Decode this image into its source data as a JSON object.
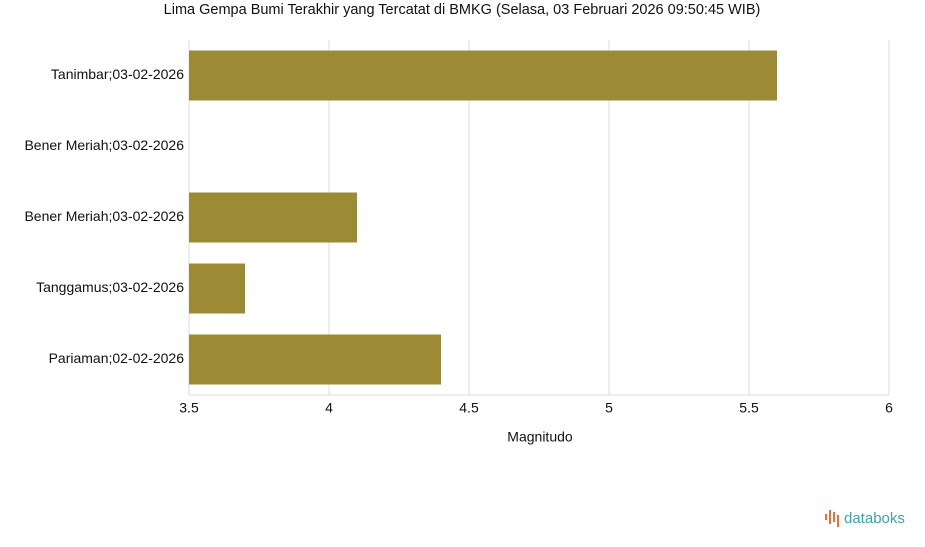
{
  "chart_data": {
    "type": "bar",
    "orientation": "horizontal",
    "title": "Lima Gempa Bumi Terakhir yang Tercatat di BMKG (Selasa, 03 Februari 2026 09:50:45 WIB)",
    "categories": [
      "Tanimbar;03-02-2026",
      "Bener Meriah;03-02-2026",
      "Bener Meriah;03-02-2026",
      "Tanggamus;03-02-2026",
      "Pariaman;02-02-2026"
    ],
    "values": [
      5.6,
      3.5,
      4.1,
      3.7,
      4.4
    ],
    "color": "#9c8b34",
    "x_label": "Magnitudo",
    "xlim": [
      3.5,
      6
    ],
    "xticks": [
      3.5,
      4,
      4.5,
      5,
      5.5,
      6
    ],
    "grid": true,
    "watermark": "databoks"
  }
}
